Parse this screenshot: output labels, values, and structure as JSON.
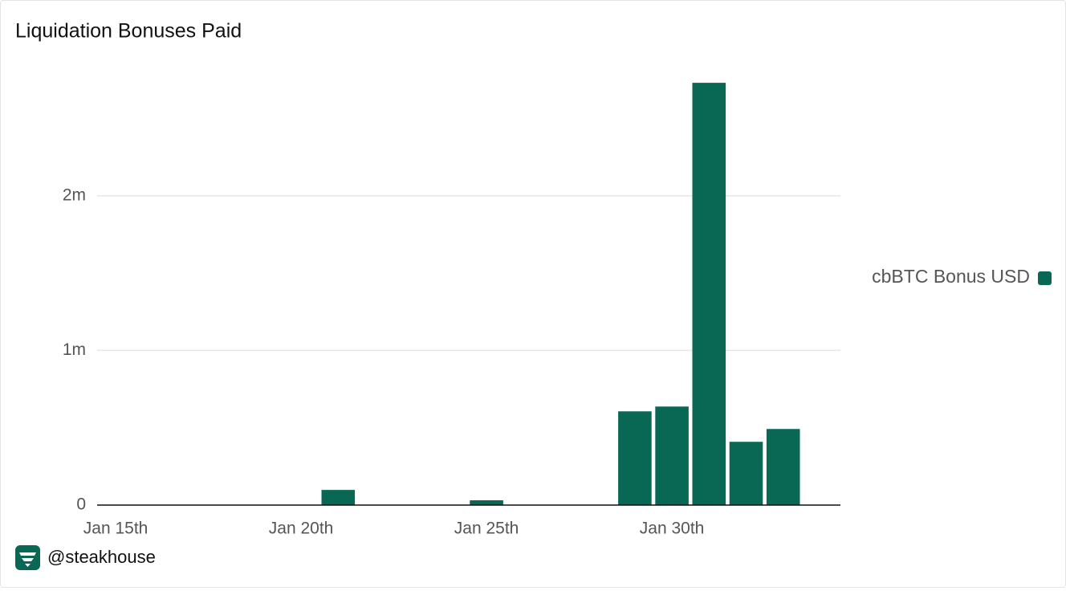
{
  "chart_data": {
    "type": "bar",
    "title": "Liquidation Bonuses Paid",
    "categories": [
      "Jan 15th",
      null,
      null,
      null,
      null,
      "Jan 20th",
      null,
      null,
      null,
      null,
      "Jan 25th",
      null,
      null,
      null,
      null,
      "Jan 30th",
      null,
      null,
      null,
      null
    ],
    "series": [
      {
        "name": "cbBTC Bonus USD",
        "color": "#086853",
        "values": [
          null,
          null,
          null,
          null,
          null,
          null,
          98000,
          null,
          null,
          null,
          31000,
          null,
          null,
          null,
          606000,
          637000,
          2730000,
          409000,
          492000,
          null
        ]
      }
    ],
    "ylim": [
      0,
      2850000
    ],
    "yticks": [
      0,
      {
        "value": 1000000,
        "label": "1m"
      },
      {
        "value": 2000000,
        "label": "2m"
      }
    ],
    "grid": true,
    "legend": "right",
    "footer": "@steakhouse"
  }
}
